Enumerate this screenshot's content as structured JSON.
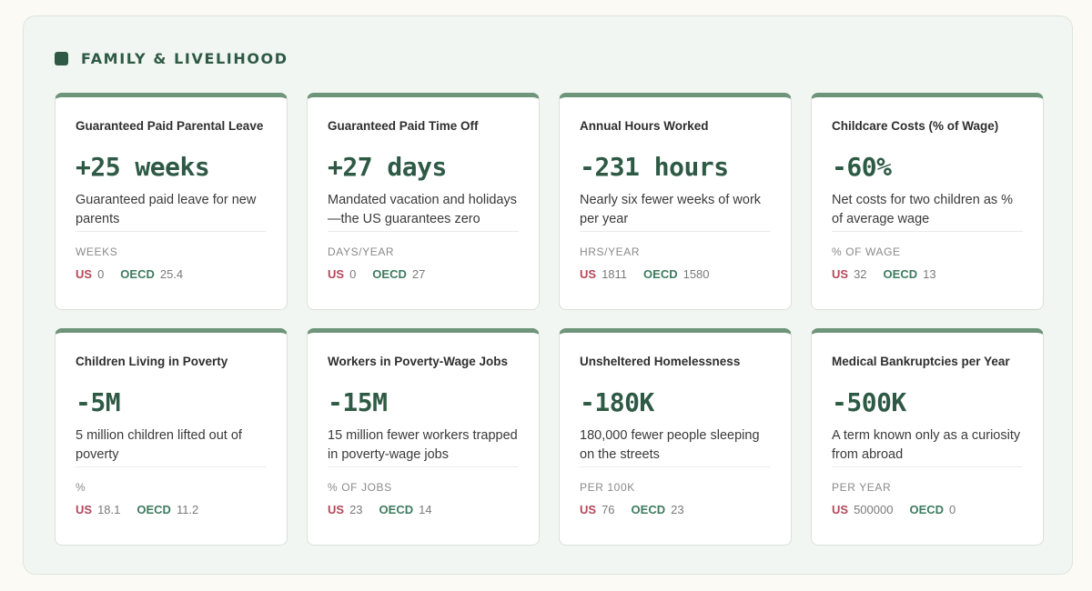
{
  "section": {
    "title": "FAMILY & LIVELIHOOD"
  },
  "labels": {
    "us": "US",
    "oecd": "OECD"
  },
  "cards": [
    {
      "title": "Guaranteed Paid Parental Leave",
      "value": "+25 weeks",
      "description": "Guaranteed paid leave for new parents",
      "unit": "WEEKS",
      "us": "0",
      "oecd": "25.4"
    },
    {
      "title": "Guaranteed Paid Time Off",
      "value": "+27 days",
      "description": "Mandated vacation and holidays—the US guarantees zero",
      "unit": "DAYS/YEAR",
      "us": "0",
      "oecd": "27"
    },
    {
      "title": "Annual Hours Worked",
      "value": "-231 hours",
      "description": "Nearly six fewer weeks of work per year",
      "unit": "HRS/YEAR",
      "us": "1811",
      "oecd": "1580"
    },
    {
      "title": "Childcare Costs (% of Wage)",
      "value": "-60%",
      "description": "Net costs for two children as % of average wage",
      "unit": "% OF WAGE",
      "us": "32",
      "oecd": "13"
    },
    {
      "title": "Children Living in Poverty",
      "value": "-5M",
      "description": "5 million children lifted out of poverty",
      "unit": "%",
      "us": "18.1",
      "oecd": "11.2"
    },
    {
      "title": "Workers in Poverty-Wage Jobs",
      "value": "-15M",
      "description": "15 million fewer workers trapped in poverty-wage jobs",
      "unit": "% OF JOBS",
      "us": "23",
      "oecd": "14"
    },
    {
      "title": "Unsheltered Homelessness",
      "value": "-180K",
      "description": "180,000 fewer people sleeping on the streets",
      "unit": "PER 100K",
      "us": "76",
      "oecd": "23"
    },
    {
      "title": "Medical Bankruptcies per Year",
      "value": "-500K",
      "description": "A term known only as a curiosity from abroad",
      "unit": "PER YEAR",
      "us": "500000",
      "oecd": "0"
    }
  ]
}
